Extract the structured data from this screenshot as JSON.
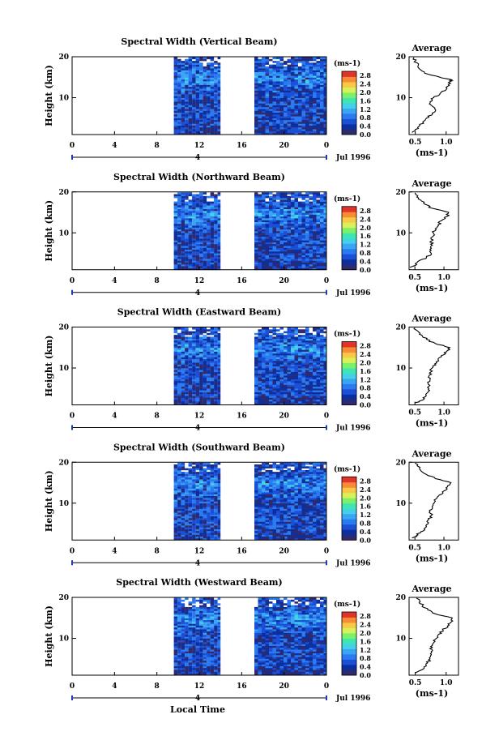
{
  "figure": {
    "x_axis_label": "Local Time",
    "date_label": "Jul 1996",
    "height_label": "Height (km)",
    "colorbar_unit": "(ms-1)",
    "average_title": "Average",
    "average_xlabel": "(ms-1)"
  },
  "chart_data": [
    {
      "type": "heatmap",
      "title": "Spectral Width (Vertical Beam)",
      "xlabel": "Local Time",
      "ylabel": "Height (km)",
      "x_ticks": [
        "0",
        "4",
        "8",
        "12",
        "16",
        "20",
        "0"
      ],
      "xlim": [
        0,
        24
      ],
      "y_ticks": [
        "20",
        "10"
      ],
      "ylim": [
        1,
        20
      ],
      "data_intervals_local_time": [
        [
          9.6,
          14.0
        ],
        [
          17.2,
          24.0
        ]
      ],
      "marker_label": "4",
      "colorbar": {
        "levels": [
          "2.8",
          "2.4",
          "2.0",
          "1.6",
          "1.2",
          "0.8",
          "0.4",
          "0.0"
        ],
        "range": [
          0.0,
          3.0
        ]
      },
      "average_profile": {
        "x_ticks": [
          "0.5",
          "1.0"
        ],
        "xlim": [
          0.4,
          1.2
        ],
        "height_km": [
          1.5,
          2,
          3,
          4,
          5,
          6,
          7,
          8,
          9,
          10,
          11,
          12,
          13,
          14,
          14.5,
          15,
          16,
          17,
          18,
          19,
          19.8
        ],
        "width_ms": [
          0.45,
          0.5,
          0.56,
          0.62,
          0.68,
          0.78,
          0.83,
          0.77,
          0.74,
          0.8,
          0.9,
          1.0,
          1.05,
          1.07,
          1.06,
          0.9,
          0.65,
          0.57,
          0.55,
          0.5,
          0.48
        ]
      }
    },
    {
      "type": "heatmap",
      "title": "Spectral Width (Northward Beam)",
      "xlabel": "Local Time",
      "ylabel": "Height (km)",
      "x_ticks": [
        "0",
        "4",
        "8",
        "12",
        "16",
        "20",
        "0"
      ],
      "xlim": [
        0,
        24
      ],
      "y_ticks": [
        "20",
        "10"
      ],
      "ylim": [
        1,
        20
      ],
      "data_intervals_local_time": [
        [
          9.6,
          14.0
        ],
        [
          17.2,
          24.0
        ]
      ],
      "marker_label": "4",
      "colorbar": {
        "levels": [
          "2.8",
          "2.4",
          "2.0",
          "1.6",
          "1.2",
          "0.8",
          "0.4",
          "0.0"
        ],
        "range": [
          0.0,
          3.0
        ]
      },
      "average_profile": {
        "x_ticks": [
          "0.5",
          "1.0"
        ],
        "xlim": [
          0.4,
          1.25
        ],
        "height_km": [
          1.5,
          2,
          3,
          4,
          5,
          6,
          7,
          8,
          9,
          10,
          11,
          12,
          13,
          14,
          15,
          16,
          17,
          18,
          19,
          19.8
        ],
        "width_ms": [
          0.42,
          0.5,
          0.55,
          0.7,
          0.78,
          0.76,
          0.8,
          0.78,
          0.8,
          0.82,
          0.85,
          0.9,
          0.96,
          1.05,
          1.08,
          0.8,
          0.67,
          0.6,
          0.55,
          0.5
        ]
      }
    },
    {
      "type": "heatmap",
      "title": "Spectral Width (Eastward Beam)",
      "xlabel": "Local Time",
      "ylabel": "Height (km)",
      "x_ticks": [
        "0",
        "4",
        "8",
        "12",
        "16",
        "20",
        "0"
      ],
      "xlim": [
        0,
        24
      ],
      "y_ticks": [
        "20",
        "10"
      ],
      "ylim": [
        1,
        20
      ],
      "data_intervals_local_time": [
        [
          9.6,
          14.0
        ],
        [
          17.2,
          24.0
        ]
      ],
      "marker_label": "4",
      "colorbar": {
        "levels": [
          "2.8",
          "2.4",
          "2.0",
          "1.6",
          "1.2",
          "0.8",
          "0.4",
          "0.0"
        ],
        "range": [
          0.0,
          3.0
        ]
      },
      "average_profile": {
        "x_ticks": [
          "0.5",
          "1.0"
        ],
        "xlim": [
          0.4,
          1.25
        ],
        "height_km": [
          1.5,
          2,
          3,
          4,
          5,
          6,
          7,
          8,
          9,
          10,
          11,
          12,
          13,
          14,
          15,
          16,
          17,
          18,
          19,
          19.8
        ],
        "width_ms": [
          0.5,
          0.6,
          0.68,
          0.72,
          0.74,
          0.73,
          0.76,
          0.74,
          0.77,
          0.8,
          0.84,
          0.9,
          0.95,
          1.05,
          1.1,
          0.85,
          0.7,
          0.62,
          0.55,
          0.5
        ]
      }
    },
    {
      "type": "heatmap",
      "title": "Spectral Width (Southward Beam)",
      "xlabel": "Local Time",
      "ylabel": "Height (km)",
      "x_ticks": [
        "0",
        "4",
        "8",
        "12",
        "16",
        "20",
        "0"
      ],
      "xlim": [
        0,
        24
      ],
      "y_ticks": [
        "20",
        "10"
      ],
      "ylim": [
        1,
        20
      ],
      "data_intervals_local_time": [
        [
          9.6,
          14.0
        ],
        [
          17.2,
          24.0
        ]
      ],
      "marker_label": "4",
      "colorbar": {
        "levels": [
          "2.8",
          "2.4",
          "2.0",
          "1.6",
          "1.2",
          "0.8",
          "0.4",
          "0.0"
        ],
        "range": [
          0.0,
          3.0
        ]
      },
      "average_profile": {
        "x_ticks": [
          "0.5",
          "1.0"
        ],
        "xlim": [
          0.4,
          1.25
        ],
        "height_km": [
          1.5,
          2,
          3,
          4,
          5,
          6,
          7,
          8,
          9,
          10,
          11,
          12,
          13,
          14,
          15,
          16,
          17,
          18,
          19,
          19.8
        ],
        "width_ms": [
          0.45,
          0.52,
          0.6,
          0.68,
          0.73,
          0.74,
          0.78,
          0.76,
          0.8,
          0.83,
          0.86,
          0.92,
          1.0,
          1.06,
          1.12,
          0.85,
          0.7,
          0.6,
          0.55,
          0.5
        ]
      }
    },
    {
      "type": "heatmap",
      "title": "Spectral Width (Westward Beam)",
      "xlabel": "Local Time",
      "ylabel": "Height (km)",
      "x_ticks": [
        "0",
        "4",
        "8",
        "12",
        "16",
        "20",
        "0"
      ],
      "xlim": [
        0,
        24
      ],
      "y_ticks": [
        "20",
        "10"
      ],
      "ylim": [
        1,
        20
      ],
      "data_intervals_local_time": [
        [
          9.6,
          14.0
        ],
        [
          17.2,
          24.0
        ]
      ],
      "marker_label": "4",
      "colorbar": {
        "levels": [
          "2.8",
          "2.4",
          "2.0",
          "1.6",
          "1.2",
          "0.8",
          "0.4",
          "0.0"
        ],
        "range": [
          0.0,
          3.0
        ]
      },
      "average_profile": {
        "x_ticks": [
          "0.5",
          "1.0"
        ],
        "xlim": [
          0.4,
          1.2
        ],
        "height_km": [
          1.5,
          2,
          3,
          4,
          5,
          6,
          7,
          8,
          9,
          10,
          11,
          12,
          13,
          14,
          15,
          16,
          17,
          18,
          19,
          19.8
        ],
        "width_ms": [
          0.5,
          0.56,
          0.64,
          0.7,
          0.74,
          0.76,
          0.78,
          0.75,
          0.8,
          0.84,
          0.88,
          0.95,
          1.02,
          1.08,
          1.1,
          0.82,
          0.7,
          0.62,
          0.58,
          0.52
        ]
      }
    }
  ]
}
